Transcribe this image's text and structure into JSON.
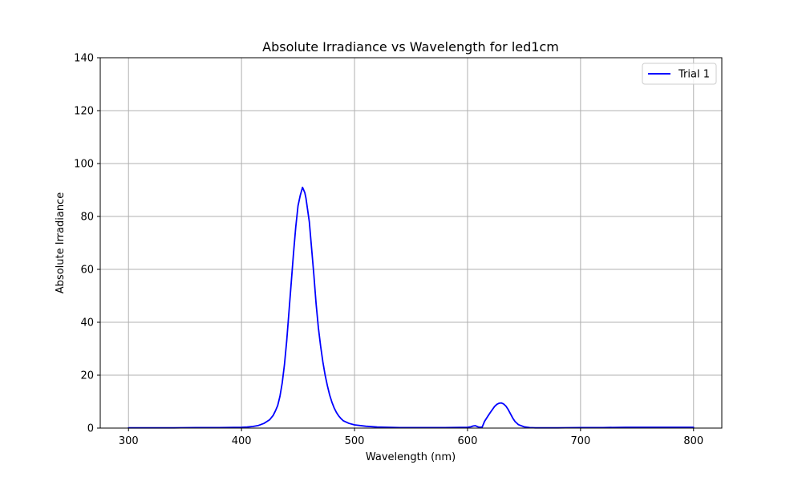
{
  "chart_data": {
    "type": "line",
    "title": "Absolute Irradiance vs Wavelength for led1cm",
    "xlabel": "Wavelength (nm)",
    "ylabel": "Absolute Irradiance",
    "xlim": [
      275,
      825
    ],
    "ylim": [
      0,
      140
    ],
    "xticks": [
      300,
      400,
      500,
      600,
      700,
      800
    ],
    "yticks": [
      0,
      20,
      40,
      60,
      80,
      100,
      120,
      140
    ],
    "grid": true,
    "legend_position": "top-right",
    "series": [
      {
        "name": "Trial 1",
        "color": "#0000ff",
        "x": [
          300,
          320,
          340,
          360,
          380,
          400,
          405,
          410,
          415,
          420,
          425,
          428,
          430,
          432,
          434,
          436,
          438,
          440,
          442,
          444,
          446,
          448,
          450,
          452,
          453,
          454,
          455,
          456,
          457,
          458,
          460,
          462,
          464,
          466,
          468,
          470,
          472,
          474,
          476,
          478,
          480,
          482,
          484,
          486,
          488,
          490,
          495,
          500,
          510,
          520,
          530,
          540,
          560,
          580,
          600,
          603,
          605,
          607,
          609,
          611,
          613,
          615,
          618,
          620,
          622,
          624,
          626,
          628,
          630,
          632,
          634,
          636,
          638,
          640,
          642,
          645,
          650,
          655,
          660,
          680,
          700,
          720,
          740,
          760,
          780,
          800
        ],
        "y": [
          0.1,
          0.1,
          0.1,
          0.2,
          0.2,
          0.3,
          0.4,
          0.6,
          1.0,
          1.8,
          3.2,
          4.8,
          6.5,
          8.5,
          12.0,
          17.0,
          24.0,
          33.0,
          44.0,
          55.0,
          66.0,
          76.0,
          84.0,
          88.0,
          89.5,
          91.0,
          90.0,
          89.0,
          87.0,
          84.0,
          78.0,
          68.0,
          58.0,
          47.0,
          38.0,
          31.0,
          25.0,
          20.0,
          16.0,
          12.5,
          9.8,
          7.6,
          5.9,
          4.6,
          3.6,
          2.8,
          1.8,
          1.2,
          0.7,
          0.4,
          0.3,
          0.2,
          0.2,
          0.2,
          0.3,
          0.5,
          0.8,
          0.9,
          0.5,
          0.3,
          0.4,
          2.5,
          4.5,
          5.8,
          7.0,
          8.2,
          9.0,
          9.4,
          9.5,
          9.1,
          8.3,
          7.0,
          5.4,
          3.8,
          2.5,
          1.3,
          0.5,
          0.2,
          0.1,
          0.1,
          0.2,
          0.2,
          0.3,
          0.3,
          0.3,
          0.3
        ]
      }
    ]
  }
}
